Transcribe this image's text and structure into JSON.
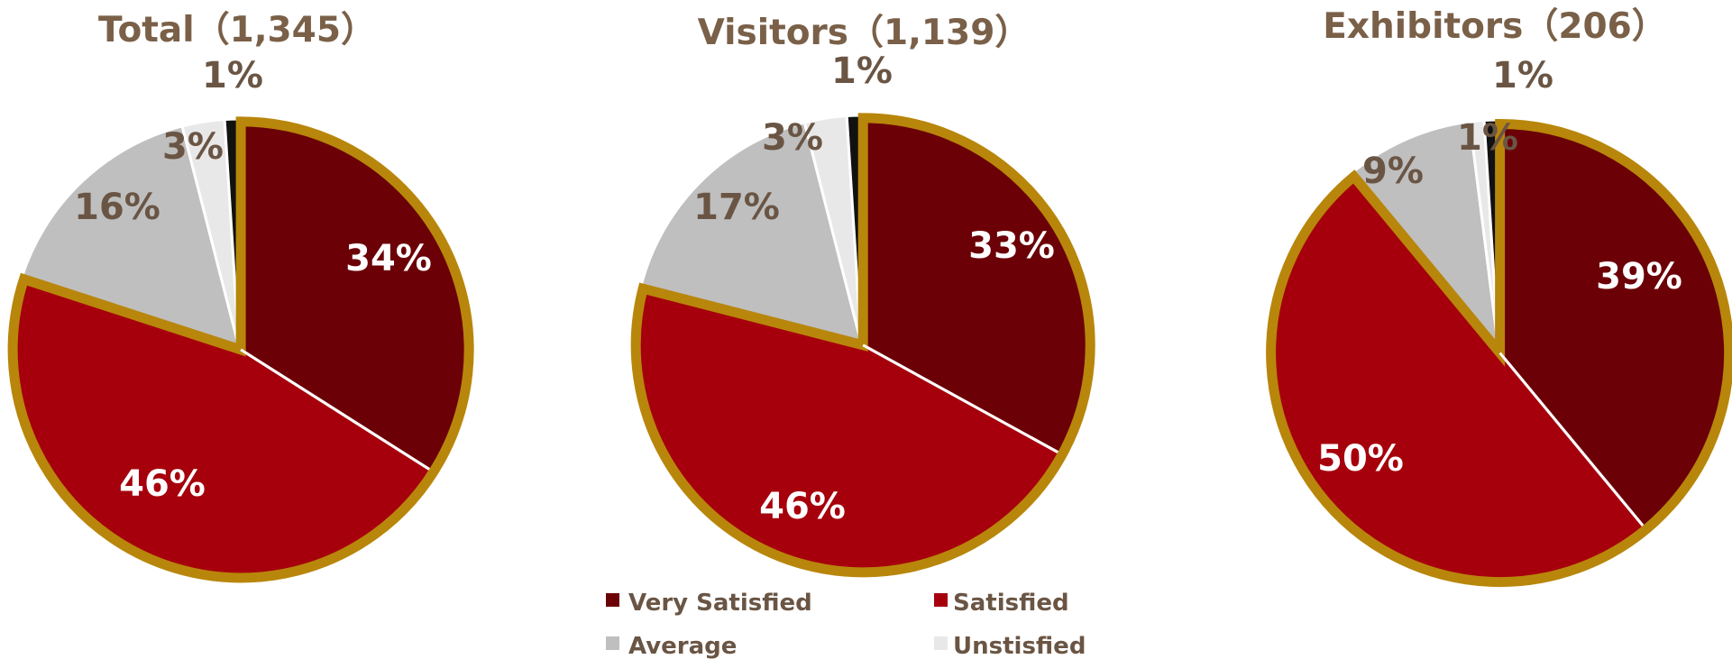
{
  "chart_data": [
    {
      "type": "pie",
      "title": "Total（1,345）",
      "categories": [
        "Very Satisfied",
        "Satisfied",
        "Average",
        "Unstisfied",
        ""
      ],
      "values": [
        34,
        46,
        16,
        3,
        1
      ],
      "labels": [
        "34%",
        "46%",
        "16%",
        "3%",
        "1%"
      ]
    },
    {
      "type": "pie",
      "title": "Visitors（1,139）",
      "categories": [
        "Very Satisfied",
        "Satisfied",
        "Average",
        "Unstisfied",
        ""
      ],
      "values": [
        33,
        46,
        17,
        3,
        1
      ],
      "labels": [
        "33%",
        "46%",
        "17%",
        "3%",
        "1%"
      ]
    },
    {
      "type": "pie",
      "title": "Exhibitors（206）",
      "categories": [
        "Very Satisfied",
        "Satisfied",
        "Average",
        "Unstisfied",
        ""
      ],
      "values": [
        39,
        50,
        9,
        1,
        1
      ],
      "labels": [
        "39%",
        "50%",
        "9%",
        "1%",
        "1%"
      ]
    }
  ],
  "legend": [
    {
      "label": "Very Satisfied",
      "color": "#6b0007"
    },
    {
      "label": "Satisfied",
      "color": "#a6000c"
    },
    {
      "label": "Average",
      "color": "#bfbfbf"
    },
    {
      "label": "Unstisfied",
      "color": "#e8e8e8"
    }
  ],
  "colors": {
    "very_satisfied": "#6b0007",
    "satisfied": "#a6000c",
    "average": "#bfbfbf",
    "unsatisfied": "#e8e8e8",
    "very_unsatisfied": "#111111",
    "highlight_outline": "#b8860b",
    "label_text": "#6a5544",
    "title_text": "#7a6048"
  }
}
